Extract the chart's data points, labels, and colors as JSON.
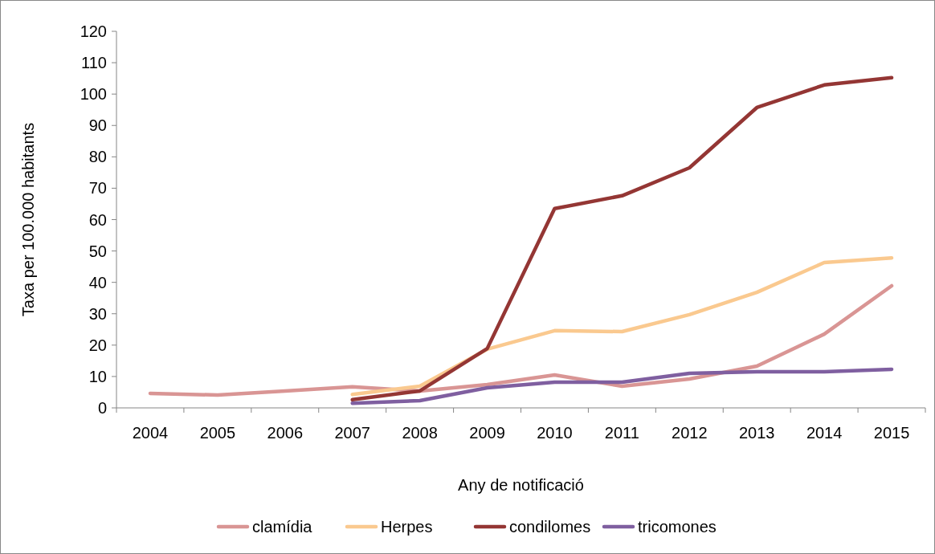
{
  "chart_data": {
    "type": "line",
    "xlabel": "Any de notificació",
    "ylabel": "Taxa per 100.000 habitants",
    "categories": [
      "2004",
      "2005",
      "2006",
      "2007",
      "2008",
      "2009",
      "2010",
      "2011",
      "2012",
      "2013",
      "2014",
      "2015"
    ],
    "series": [
      {
        "name": "clamídia",
        "color": "#d99594",
        "values": [
          4.6,
          4.1,
          5.4,
          6.7,
          5.4,
          7.4,
          10.5,
          6.9,
          9.2,
          13.3,
          23.5,
          38.9
        ]
      },
      {
        "name": "Herpes",
        "color": "#fac98f",
        "values": [
          null,
          null,
          null,
          4.3,
          6.9,
          18.7,
          24.6,
          24.3,
          29.7,
          36.8,
          46.3,
          47.8
        ]
      },
      {
        "name": "condilomes",
        "color": "#943634",
        "values": [
          null,
          null,
          null,
          2.6,
          5.4,
          18.9,
          63.5,
          67.6,
          76.5,
          95.7,
          102.9,
          105.2
        ]
      },
      {
        "name": "tricomones",
        "color": "#7f5fa0",
        "values": [
          null,
          null,
          null,
          1.5,
          2.3,
          6.4,
          8.2,
          8.2,
          11,
          11.5,
          11.5,
          12.3
        ]
      }
    ],
    "ylim": [
      0,
      120
    ],
    "yticks": [
      0,
      10,
      20,
      30,
      40,
      50,
      60,
      70,
      80,
      90,
      100,
      110,
      120
    ],
    "grid": false,
    "legend": "bottom",
    "marker": "none",
    "line_style": "solid"
  }
}
